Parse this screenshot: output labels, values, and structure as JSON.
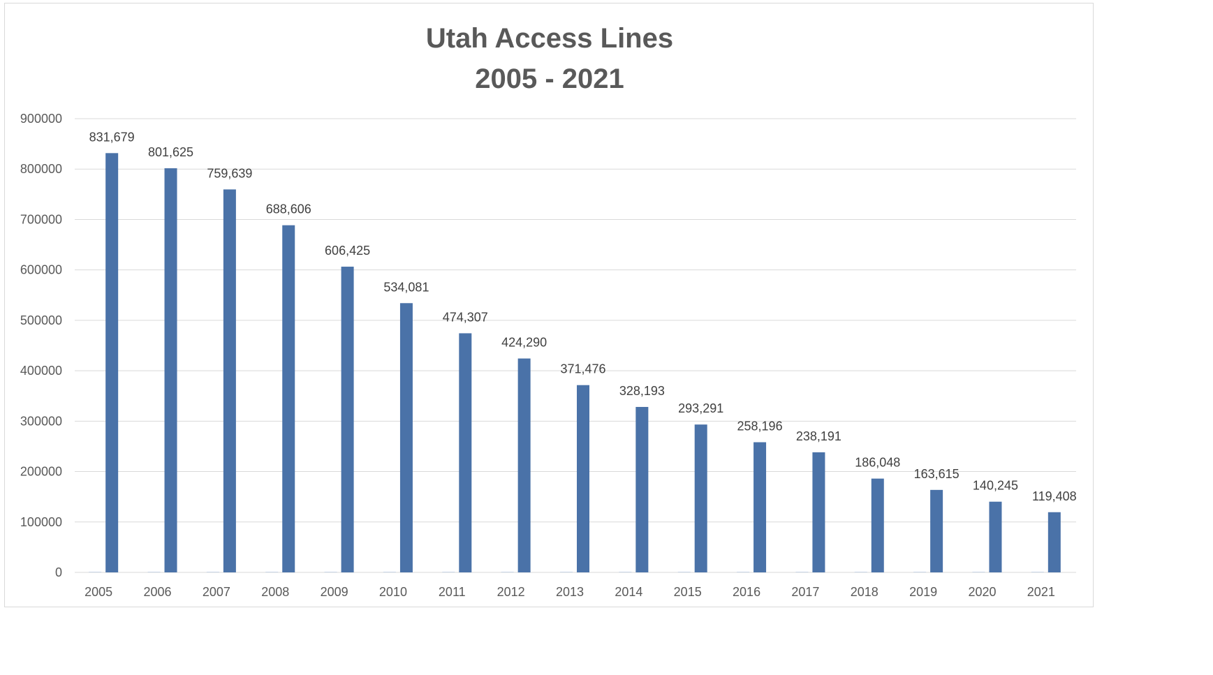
{
  "chart_data": {
    "type": "bar",
    "title": [
      "Utah Access Lines",
      "2005 - 2021"
    ],
    "xlabel": "",
    "ylabel": "",
    "ylim": [
      0,
      900000
    ],
    "yticks": [
      "900000",
      "800000",
      "700000",
      "600000",
      "500000",
      "400000",
      "300000",
      "200000",
      "100000",
      "0"
    ],
    "grid": true,
    "legend": "none",
    "colors": {
      "bar": "#4a72a8",
      "placeholder": "#c9d6e8"
    },
    "categories": [
      "2005",
      "2006",
      "2007",
      "2008",
      "2009",
      "2010",
      "2011",
      "2012",
      "2013",
      "2014",
      "2015",
      "2016",
      "2017",
      "2018",
      "2019",
      "2020",
      "2021"
    ],
    "values": [
      831679,
      801625,
      759639,
      688606,
      606425,
      534081,
      474307,
      424290,
      371476,
      328193,
      293291,
      258196,
      238191,
      186048,
      163615,
      140245,
      119408
    ],
    "data_labels": [
      "831,679",
      "801,625",
      "759,639",
      "688,606",
      "606,425",
      "534,081",
      "474,307",
      "424,290",
      "371,476",
      "328,193",
      "293,291",
      "258,196",
      "238,191",
      "186,048",
      "163,615",
      "140,245",
      "119,408"
    ]
  }
}
